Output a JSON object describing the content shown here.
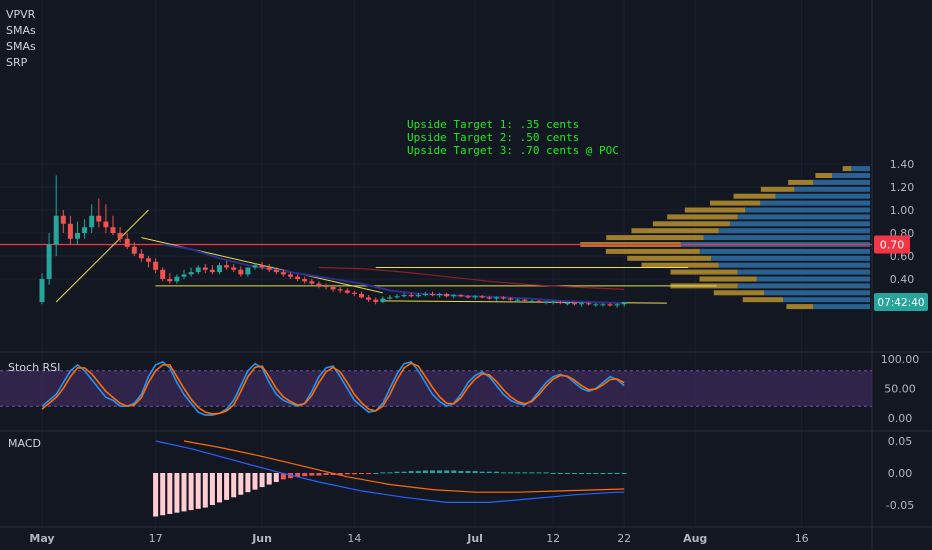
{
  "indicators": [
    "VPVR",
    "SMAs",
    "SMAs",
    "SRP"
  ],
  "panes": {
    "stoch": "Stoch RSI",
    "macd": "MACD"
  },
  "annotations": [
    "Upside Target 1: .35 cents",
    "Upside Target 2: .50 cents",
    "Upside Target 3: .70 cents @ POC"
  ],
  "price_axis": {
    "ticks": [
      "1.40",
      "1.20",
      "1.00",
      "0.80",
      "0.60",
      "0.40"
    ],
    "tick_values": [
      1.4,
      1.2,
      1.0,
      0.8,
      0.6,
      0.4
    ],
    "red_level_label": "0.70",
    "red_level": 0.7,
    "countdown_label": "07:42:40"
  },
  "stoch_axis": {
    "ticks": [
      "100.00",
      "50.00",
      "0.00"
    ],
    "tick_values": [
      100,
      50,
      0
    ]
  },
  "macd_axis": {
    "ticks": [
      "0.05",
      "0.00",
      "-0.05"
    ],
    "tick_values": [
      0.05,
      0.0,
      -0.05
    ]
  },
  "time_axis": {
    "labels": [
      "May",
      "17",
      "Jun",
      "14",
      "Jul",
      "12",
      "22",
      "Aug",
      "16"
    ],
    "label_days": [
      1,
      17,
      32,
      45,
      62,
      73,
      83,
      93,
      108
    ]
  },
  "colors": {
    "background": "#131722",
    "up": "#26a69a",
    "down": "#ef5350",
    "trendline": "#e6e04a",
    "red_level": "#f23645",
    "annotation": "#22e822",
    "vp_up": "#2e6ea6",
    "vp_down": "#b8902e",
    "stoch_k": "#2196f3",
    "stoch_d": "#ff6d00",
    "stoch_band": "#3b2a5a"
  },
  "chart_data": [
    {
      "type": "candlestick",
      "title": "",
      "ylim": [
        0.1,
        1.45
      ],
      "days": [
        1,
        2,
        3,
        4,
        5,
        6,
        7,
        8,
        9,
        10,
        11,
        12,
        13,
        14,
        15,
        16,
        17,
        18,
        19,
        20,
        21,
        22,
        23,
        24,
        25,
        26,
        27,
        28,
        29,
        30,
        31,
        32,
        33,
        34,
        35,
        36,
        37,
        38,
        39,
        40,
        41,
        42,
        43,
        44,
        45,
        46,
        47,
        48,
        49,
        50,
        51,
        52,
        53,
        54,
        55,
        56,
        57,
        58,
        59,
        60,
        61,
        62,
        63,
        64,
        65,
        66,
        67,
        68,
        69,
        70,
        71,
        72,
        73,
        74,
        75,
        76,
        77,
        78,
        79,
        80,
        81,
        82,
        83
      ],
      "open": [
        0.2,
        0.4,
        0.7,
        0.95,
        0.88,
        0.75,
        0.8,
        0.85,
        0.95,
        0.9,
        0.85,
        0.8,
        0.75,
        0.68,
        0.62,
        0.58,
        0.55,
        0.48,
        0.4,
        0.38,
        0.42,
        0.44,
        0.46,
        0.5,
        0.48,
        0.46,
        0.52,
        0.5,
        0.48,
        0.44,
        0.5,
        0.52,
        0.5,
        0.48,
        0.46,
        0.44,
        0.42,
        0.4,
        0.38,
        0.36,
        0.34,
        0.33,
        0.31,
        0.3,
        0.28,
        0.27,
        0.24,
        0.22,
        0.2,
        0.23,
        0.24,
        0.25,
        0.26,
        0.25,
        0.26,
        0.27,
        0.26,
        0.27,
        0.25,
        0.26,
        0.25,
        0.24,
        0.25,
        0.24,
        0.23,
        0.24,
        0.23,
        0.22,
        0.22,
        0.21,
        0.21,
        0.2,
        0.2,
        0.2,
        0.19,
        0.19,
        0.18,
        0.19,
        0.18,
        0.18,
        0.18,
        0.17,
        0.18
      ],
      "high": [
        0.45,
        0.8,
        1.3,
        1.0,
        0.95,
        0.9,
        0.92,
        1.05,
        1.1,
        1.05,
        0.95,
        0.85,
        0.8,
        0.72,
        0.66,
        0.6,
        0.58,
        0.5,
        0.45,
        0.44,
        0.48,
        0.5,
        0.52,
        0.53,
        0.52,
        0.54,
        0.56,
        0.53,
        0.51,
        0.5,
        0.54,
        0.55,
        0.53,
        0.5,
        0.48,
        0.46,
        0.44,
        0.42,
        0.4,
        0.38,
        0.36,
        0.35,
        0.33,
        0.32,
        0.3,
        0.29,
        0.26,
        0.24,
        0.25,
        0.26,
        0.27,
        0.28,
        0.28,
        0.28,
        0.29,
        0.29,
        0.28,
        0.28,
        0.27,
        0.27,
        0.26,
        0.26,
        0.26,
        0.25,
        0.25,
        0.25,
        0.24,
        0.23,
        0.23,
        0.22,
        0.22,
        0.21,
        0.21,
        0.21,
        0.2,
        0.2,
        0.2,
        0.2,
        0.19,
        0.19,
        0.19,
        0.19,
        0.2
      ],
      "low": [
        0.18,
        0.35,
        0.6,
        0.8,
        0.7,
        0.7,
        0.75,
        0.8,
        0.85,
        0.8,
        0.78,
        0.72,
        0.66,
        0.6,
        0.55,
        0.5,
        0.45,
        0.38,
        0.36,
        0.36,
        0.4,
        0.42,
        0.44,
        0.45,
        0.44,
        0.44,
        0.48,
        0.46,
        0.42,
        0.42,
        0.48,
        0.48,
        0.46,
        0.44,
        0.42,
        0.4,
        0.38,
        0.36,
        0.34,
        0.32,
        0.31,
        0.29,
        0.28,
        0.27,
        0.25,
        0.23,
        0.2,
        0.18,
        0.19,
        0.22,
        0.23,
        0.24,
        0.24,
        0.24,
        0.25,
        0.25,
        0.24,
        0.24,
        0.23,
        0.24,
        0.23,
        0.22,
        0.23,
        0.22,
        0.21,
        0.22,
        0.21,
        0.2,
        0.2,
        0.19,
        0.19,
        0.18,
        0.18,
        0.18,
        0.17,
        0.17,
        0.16,
        0.17,
        0.16,
        0.16,
        0.16,
        0.15,
        0.16
      ],
      "close": [
        0.4,
        0.7,
        0.95,
        0.88,
        0.75,
        0.8,
        0.85,
        0.95,
        0.9,
        0.85,
        0.8,
        0.75,
        0.68,
        0.62,
        0.58,
        0.55,
        0.48,
        0.4,
        0.38,
        0.42,
        0.44,
        0.46,
        0.5,
        0.48,
        0.46,
        0.52,
        0.5,
        0.48,
        0.44,
        0.5,
        0.52,
        0.5,
        0.48,
        0.46,
        0.44,
        0.42,
        0.4,
        0.38,
        0.36,
        0.34,
        0.33,
        0.31,
        0.3,
        0.28,
        0.27,
        0.24,
        0.22,
        0.2,
        0.23,
        0.24,
        0.25,
        0.26,
        0.25,
        0.26,
        0.27,
        0.26,
        0.27,
        0.25,
        0.26,
        0.25,
        0.24,
        0.25,
        0.24,
        0.23,
        0.24,
        0.23,
        0.22,
        0.22,
        0.21,
        0.21,
        0.2,
        0.2,
        0.2,
        0.19,
        0.19,
        0.18,
        0.19,
        0.18,
        0.18,
        0.18,
        0.17,
        0.18,
        0.2
      ],
      "sma_short": [
        [
          18,
          0.7
        ],
        [
          22,
          0.66
        ],
        [
          26,
          0.58
        ],
        [
          30,
          0.52
        ],
        [
          34,
          0.48
        ],
        [
          38,
          0.44
        ],
        [
          42,
          0.4
        ],
        [
          46,
          0.36
        ],
        [
          50,
          0.3
        ],
        [
          54,
          0.27
        ],
        [
          58,
          0.26
        ],
        [
          62,
          0.25
        ],
        [
          66,
          0.24
        ],
        [
          70,
          0.23
        ],
        [
          74,
          0.21
        ],
        [
          78,
          0.2
        ],
        [
          83,
          0.19
        ]
      ],
      "sma_long": [
        [
          40,
          0.5
        ],
        [
          46,
          0.49
        ],
        [
          52,
          0.46
        ],
        [
          58,
          0.42
        ],
        [
          64,
          0.38
        ],
        [
          70,
          0.35
        ],
        [
          76,
          0.33
        ],
        [
          83,
          0.31
        ]
      ],
      "trendlines": [
        {
          "from": [
            3,
            0.2
          ],
          "to": [
            16,
            1.0
          ]
        },
        {
          "from": [
            15,
            0.76
          ],
          "to": [
            49,
            0.28
          ]
        },
        {
          "from": [
            17,
            0.34
          ],
          "to": [
            50,
            0.34
          ]
        },
        {
          "from": [
            49,
            0.21
          ],
          "to": [
            89,
            0.19
          ]
        },
        {
          "from": [
            48,
            0.5
          ],
          "to": [
            92,
            0.5
          ]
        },
        {
          "from": [
            50,
            0.34
          ],
          "to": [
            96,
            0.34
          ]
        }
      ],
      "volume_profile": [
        {
          "price": 1.36,
          "up": 0.1,
          "down": 0.05
        },
        {
          "price": 1.3,
          "up": 0.2,
          "down": 0.1
        },
        {
          "price": 1.24,
          "up": 0.3,
          "down": 0.15
        },
        {
          "price": 1.18,
          "up": 0.4,
          "down": 0.2
        },
        {
          "price": 1.12,
          "up": 0.5,
          "down": 0.25
        },
        {
          "price": 1.06,
          "up": 0.58,
          "down": 0.3
        },
        {
          "price": 1.0,
          "up": 0.66,
          "down": 0.36
        },
        {
          "price": 0.94,
          "up": 0.7,
          "down": 0.42
        },
        {
          "price": 0.88,
          "up": 0.74,
          "down": 0.46
        },
        {
          "price": 0.82,
          "up": 0.8,
          "down": 0.52
        },
        {
          "price": 0.76,
          "up": 0.88,
          "down": 0.58
        },
        {
          "price": 0.7,
          "up": 1.0,
          "down": 0.6
        },
        {
          "price": 0.64,
          "up": 0.9,
          "down": 0.56
        },
        {
          "price": 0.58,
          "up": 0.84,
          "down": 0.5
        },
        {
          "price": 0.52,
          "up": 0.8,
          "down": 0.46
        },
        {
          "price": 0.46,
          "up": 0.7,
          "down": 0.4
        },
        {
          "price": 0.4,
          "up": 0.6,
          "down": 0.34
        },
        {
          "price": 0.34,
          "up": 0.7,
          "down": 0.4
        },
        {
          "price": 0.28,
          "up": 0.56,
          "down": 0.3
        },
        {
          "price": 0.22,
          "up": 0.46,
          "down": 0.24
        },
        {
          "price": 0.16,
          "up": 0.3,
          "down": 0.16
        }
      ]
    },
    {
      "type": "line",
      "title": "Stoch RSI",
      "ylim": [
        0,
        110
      ],
      "bands": [
        20,
        80
      ],
      "series": [
        {
          "values": [
            20,
            30,
            40,
            60,
            80,
            90,
            80,
            65,
            50,
            35,
            30,
            20,
            20,
            25,
            40,
            70,
            90,
            95,
            85,
            60,
            40,
            25,
            10,
            5,
            5,
            8,
            15,
            30,
            55,
            80,
            92,
            85,
            60,
            40,
            30,
            25,
            20,
            25,
            45,
            70,
            85,
            88,
            70,
            50,
            30,
            20,
            10,
            12,
            25,
            50,
            75,
            92,
            95,
            80,
            60,
            40,
            28,
            20,
            25,
            40,
            60,
            72,
            78,
            70,
            55,
            40,
            30,
            25,
            22,
            30,
            45,
            60,
            70,
            74,
            70,
            60,
            50,
            45,
            50,
            60,
            70,
            65,
            55
          ]
        },
        {
          "values": [
            15,
            25,
            35,
            50,
            70,
            85,
            85,
            75,
            60,
            45,
            35,
            25,
            20,
            22,
            35,
            60,
            80,
            90,
            90,
            70,
            50,
            32,
            18,
            10,
            7,
            8,
            12,
            22,
            45,
            70,
            86,
            88,
            70,
            50,
            36,
            28,
            22,
            24,
            38,
            60,
            78,
            86,
            78,
            60,
            40,
            26,
            15,
            12,
            20,
            40,
            65,
            85,
            93,
            88,
            70,
            52,
            36,
            25,
            24,
            34,
            52,
            66,
            75,
            73,
            62,
            48,
            36,
            28,
            24,
            28,
            40,
            54,
            66,
            72,
            71,
            64,
            55,
            48,
            49,
            56,
            65,
            66,
            60
          ]
        }
      ]
    },
    {
      "type": "bar",
      "title": "MACD",
      "ylim": [
        -0.07,
        0.06
      ],
      "x_start": 17,
      "histogram": [
        -0.068,
        -0.066,
        -0.064,
        -0.062,
        -0.06,
        -0.058,
        -0.056,
        -0.054,
        -0.05,
        -0.046,
        -0.042,
        -0.038,
        -0.034,
        -0.03,
        -0.026,
        -0.022,
        -0.018,
        -0.014,
        -0.01,
        -0.008,
        -0.006,
        -0.005,
        -0.004,
        -0.004,
        -0.003,
        -0.003,
        -0.003,
        -0.002,
        -0.002,
        -0.001,
        -0.001,
        0.0,
        0.001,
        0.001,
        0.002,
        0.002,
        0.003,
        0.003,
        0.004,
        0.004,
        0.004,
        0.004,
        0.004,
        0.003,
        0.003,
        0.003,
        0.002,
        0.002,
        0.002,
        0.001,
        0.001,
        0.001,
        0.001,
        0.001,
        0.001,
        0.001,
        0.0,
        0.0,
        0.0,
        0.0,
        0.0,
        0.0,
        0.0,
        0.0,
        0.0,
        0.0,
        0.0
      ],
      "macd_line": [
        [
          17,
          0.05
        ],
        [
          22,
          0.038
        ],
        [
          28,
          0.02
        ],
        [
          34,
          0.002
        ],
        [
          40,
          -0.014
        ],
        [
          46,
          -0.028
        ],
        [
          52,
          -0.038
        ],
        [
          58,
          -0.046
        ],
        [
          64,
          -0.046
        ],
        [
          70,
          -0.04
        ],
        [
          76,
          -0.034
        ],
        [
          82,
          -0.03
        ],
        [
          83,
          -0.03
        ]
      ],
      "signal_line": [
        [
          21,
          0.05
        ],
        [
          26,
          0.04
        ],
        [
          32,
          0.026
        ],
        [
          38,
          0.01
        ],
        [
          44,
          -0.006
        ],
        [
          50,
          -0.018
        ],
        [
          56,
          -0.026
        ],
        [
          62,
          -0.03
        ],
        [
          68,
          -0.03
        ],
        [
          74,
          -0.028
        ],
        [
          80,
          -0.026
        ],
        [
          83,
          -0.025
        ]
      ]
    }
  ]
}
